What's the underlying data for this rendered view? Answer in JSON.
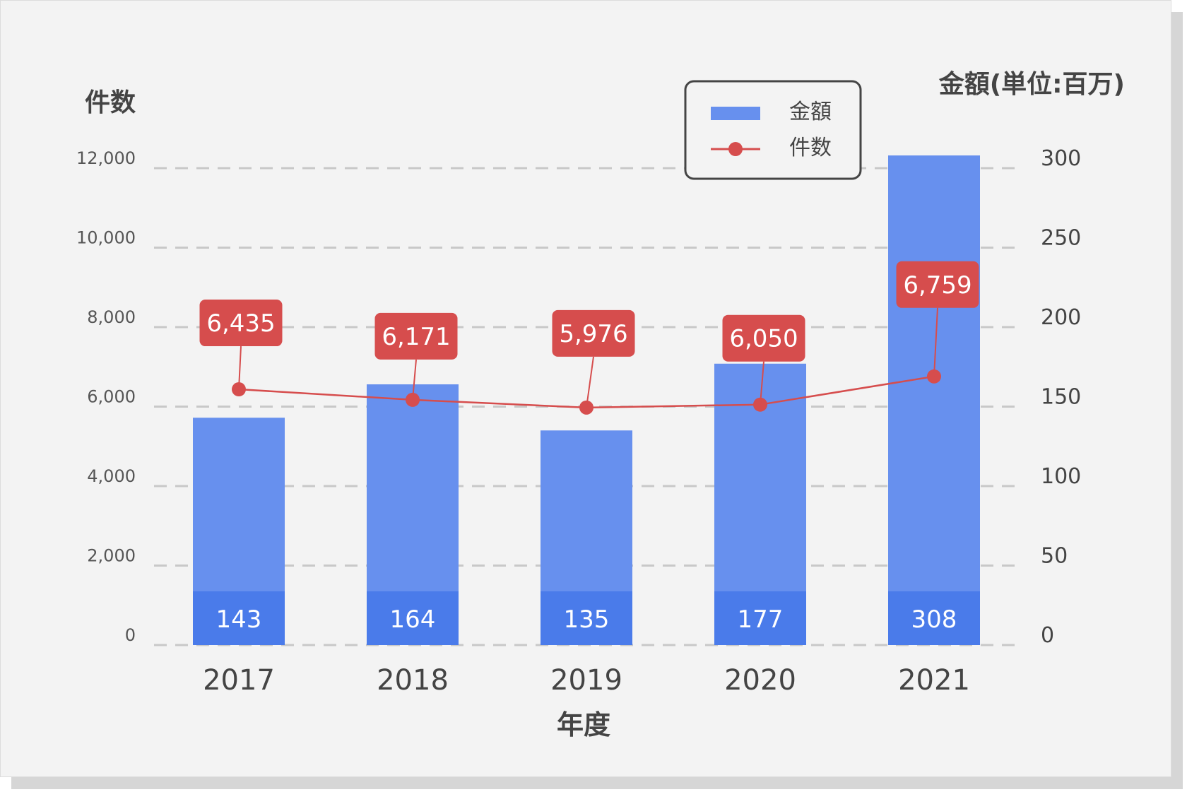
{
  "chart_data": {
    "type": "bar",
    "categories": [
      "2017",
      "2018",
      "2019",
      "2020",
      "2021"
    ],
    "xlabel": "年度",
    "left_axis": {
      "title": "件数",
      "range": [
        0,
        12000
      ],
      "ticks": [
        "0",
        "2,000",
        "4,000",
        "6,000",
        "8,000",
        "10,000",
        "12,000"
      ]
    },
    "right_axis": {
      "title": "金額(単位:百万)",
      "range": [
        0,
        300
      ],
      "ticks": [
        "0",
        "50",
        "100",
        "150",
        "200",
        "250",
        "300"
      ]
    },
    "series": [
      {
        "name": "金額",
        "type": "bar",
        "axis": "right",
        "color": "#6790ee",
        "label_color": "#4a7bea",
        "values": [
          143,
          164,
          135,
          177,
          308
        ],
        "labels": [
          "143",
          "164",
          "135",
          "177",
          "308"
        ]
      },
      {
        "name": "件数",
        "type": "line",
        "axis": "left",
        "color": "#d64d4d",
        "values": [
          6435,
          6171,
          5976,
          6050,
          6759
        ],
        "labels": [
          "6,435",
          "6,171",
          "5,976",
          "6,050",
          "6,759"
        ]
      }
    ],
    "legend": {
      "position": "top-right",
      "entries": [
        "金額",
        "件数"
      ]
    },
    "grid": true,
    "grid_style": "dashed"
  }
}
